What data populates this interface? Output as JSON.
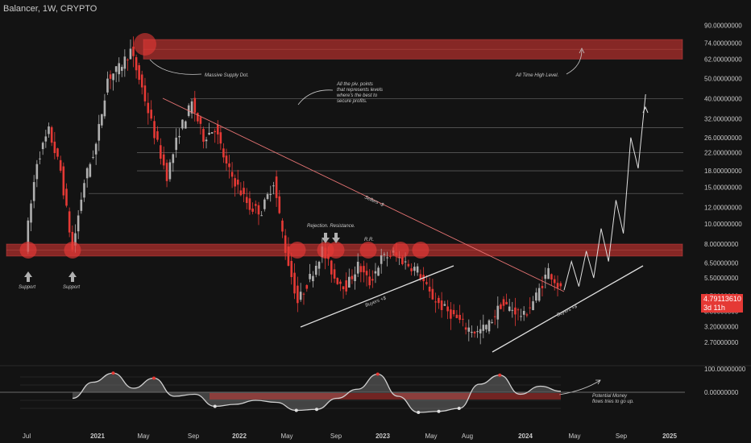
{
  "title": "Balancer, 1W, CRYPTO",
  "last_price": "4.79113610",
  "countdown": "3d 11h",
  "colors": {
    "background": "#131313",
    "bull": "#b0b0b0",
    "bear": "#e53935",
    "zone": "#e53935",
    "text": "#c9c9c9"
  },
  "chart_data": {
    "type": "candlestick",
    "scale": "log",
    "ylim": [
      2.4,
      95
    ],
    "price_ticks": [
      "90.00000000",
      "74.00000000",
      "62.00000000",
      "50.00000000",
      "40.00000000",
      "32.00000000",
      "26.00000000",
      "22.00000000",
      "18.00000000",
      "15.00000000",
      "12.00000000",
      "10.00000000",
      "8.00000000",
      "6.50000000",
      "5.50000000",
      "4.50000000",
      "3.80000000",
      "3.20000000",
      "2.70000000"
    ],
    "time_ticks": [
      "Jul",
      "2021",
      "May",
      "Sep",
      "2022",
      "May",
      "Sep",
      "2023",
      "May",
      "Aug",
      "2024",
      "May",
      "Sep",
      "2025"
    ],
    "horizontal_levels": [
      40,
      29,
      22,
      18,
      14
    ],
    "zones": [
      {
        "from": 62,
        "to": 77
      },
      {
        "from": 7.0,
        "to": 8.0
      }
    ],
    "price_path": [
      {
        "date": "2020-07",
        "price": 7.8
      },
      {
        "date": "2020-08",
        "price": 20
      },
      {
        "date": "2020-09",
        "price": 28
      },
      {
        "date": "2020-10",
        "price": 18
      },
      {
        "date": "2020-11",
        "price": 7.5
      },
      {
        "date": "2020-12",
        "price": 16
      },
      {
        "date": "2021-01",
        "price": 24
      },
      {
        "date": "2021-02",
        "price": 50
      },
      {
        "date": "2021-03",
        "price": 56
      },
      {
        "date": "2021-04",
        "price": 68
      },
      {
        "date": "2021-05",
        "price": 45
      },
      {
        "date": "2021-06",
        "price": 27
      },
      {
        "date": "2021-07",
        "price": 17
      },
      {
        "date": "2021-08",
        "price": 28
      },
      {
        "date": "2021-09",
        "price": 38
      },
      {
        "date": "2021-10",
        "price": 26
      },
      {
        "date": "2021-11",
        "price": 29
      },
      {
        "date": "2021-12",
        "price": 19
      },
      {
        "date": "2022-01",
        "price": 15
      },
      {
        "date": "2022-02",
        "price": 12
      },
      {
        "date": "2022-03",
        "price": 11.5
      },
      {
        "date": "2022-04",
        "price": 16
      },
      {
        "date": "2022-05",
        "price": 7.5
      },
      {
        "date": "2022-06",
        "price": 4.2
      },
      {
        "date": "2022-07",
        "price": 5.5
      },
      {
        "date": "2022-08",
        "price": 7.5
      },
      {
        "date": "2022-09",
        "price": 5.5
      },
      {
        "date": "2022-10",
        "price": 5.0
      },
      {
        "date": "2022-11",
        "price": 6.3
      },
      {
        "date": "2022-12",
        "price": 5.2
      },
      {
        "date": "2023-01",
        "price": 6.8
      },
      {
        "date": "2023-02",
        "price": 7.2
      },
      {
        "date": "2023-03",
        "price": 6.5
      },
      {
        "date": "2023-04",
        "price": 6.0
      },
      {
        "date": "2023-05",
        "price": 4.6
      },
      {
        "date": "2023-06",
        "price": 4.0
      },
      {
        "date": "2023-07",
        "price": 3.6
      },
      {
        "date": "2023-08",
        "price": 3.2
      },
      {
        "date": "2023-09",
        "price": 3.0
      },
      {
        "date": "2023-10",
        "price": 3.3
      },
      {
        "date": "2023-11",
        "price": 4.1
      },
      {
        "date": "2023-12",
        "price": 3.9
      },
      {
        "date": "2024-01",
        "price": 3.6
      },
      {
        "date": "2024-02",
        "price": 4.5
      },
      {
        "date": "2024-03",
        "price": 6.0
      },
      {
        "date": "2024-04",
        "price": 4.8
      }
    ],
    "projection": [
      {
        "date": "2024-04",
        "price": 4.8
      },
      {
        "date": "2024-05",
        "price": 6.6
      },
      {
        "date": "2024-05",
        "price": 5.0
      },
      {
        "date": "2024-06",
        "price": 7.4
      },
      {
        "date": "2024-06",
        "price": 5.5
      },
      {
        "date": "2024-07",
        "price": 9.5
      },
      {
        "date": "2024-08",
        "price": 6.6
      },
      {
        "date": "2024-09",
        "price": 13.0
      },
      {
        "date": "2024-10",
        "price": 9.0
      },
      {
        "date": "2024-10",
        "price": 26.0
      },
      {
        "date": "2024-11",
        "price": 18.5
      },
      {
        "date": "2024-11",
        "price": 42.0
      }
    ],
    "oscillator": {
      "ticks": [
        "100.00000000",
        "0.00000000"
      ],
      "values": [
        -30,
        50,
        95,
        20,
        70,
        -20,
        -10,
        -70,
        -60,
        -40,
        -50,
        -90,
        -85,
        -30,
        15,
        90,
        -20,
        -100,
        -95,
        -80,
        40,
        85,
        -10,
        30,
        5
      ]
    }
  },
  "annotations": {
    "supply": "Massive Supply Dot.",
    "ath": "All Time High Level.",
    "piv_1": "All the piv. points",
    "piv_2": "that represents levels",
    "piv_3": "where's the best to",
    "piv_4": "secure profits.",
    "sellers": "Sellers -$",
    "rejection": "Rejection. Resistance.",
    "rr": "R.R.",
    "support_1": "Support",
    "support_2": "Support",
    "buyers_1": "Buyers +$",
    "buyers_2": "Buyers +$",
    "money_1": "Potential Money",
    "money_2": "flows tries to go up."
  }
}
